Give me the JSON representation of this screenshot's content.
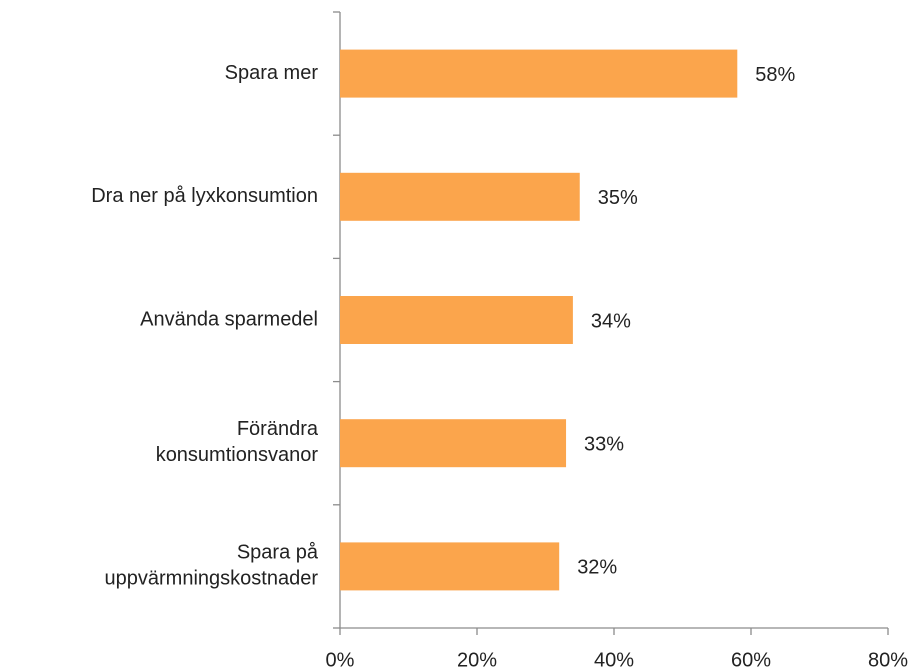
{
  "chart_data": {
    "type": "bar",
    "orientation": "horizontal",
    "categories": [
      "Spara mer",
      "Dra ner på lyxkonsumtion",
      "Använda sparmedel",
      "Förändra\nkonsumtionsvanor",
      "Spara på\nuppvärmningskostnader"
    ],
    "values": [
      58,
      35,
      34,
      33,
      32
    ],
    "value_labels": [
      "58%",
      "35%",
      "34%",
      "33%",
      "32%"
    ],
    "color": "#fba54c",
    "xlim": [
      0,
      80
    ],
    "xticks": [
      {
        "value": 0,
        "label": "0%"
      },
      {
        "value": 20,
        "label": "20%"
      },
      {
        "value": 40,
        "label": "40%"
      },
      {
        "value": 60,
        "label": "60%"
      },
      {
        "value": 80,
        "label": "80%"
      }
    ],
    "grid": false
  }
}
